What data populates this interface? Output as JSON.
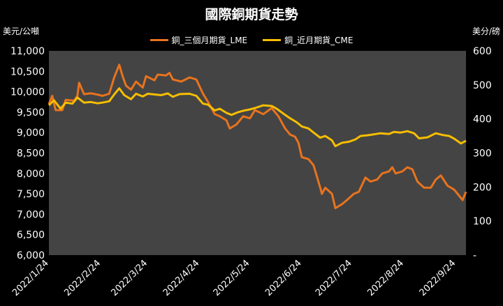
{
  "chart_data": {
    "type": "line",
    "title": "國際銅期貨走勢",
    "ylabel_left": "美元/公噸",
    "ylabel_right": "美分/磅",
    "ylim_left": [
      6000,
      11000
    ],
    "ylim_right": [
      0,
      600
    ],
    "left_ticks": [
      "6,000",
      "6,500",
      "7,000",
      "7,500",
      "8,000",
      "8,500",
      "9,000",
      "9,500",
      "10,000",
      "10,500",
      "11,000"
    ],
    "right_ticks": [
      "-",
      "100",
      "200",
      "300",
      "400",
      "500",
      "600"
    ],
    "x_tick_labels": [
      "2022/1/24",
      "2022/2/24",
      "2022/3/24",
      "2022/4/24",
      "2022/5/24",
      "2022/6/24",
      "2022/7/24",
      "2022/8/24",
      "2022/9/24"
    ],
    "x_range": [
      "2022-01-24",
      "2022-09-30"
    ],
    "grid": false,
    "legend_position": "top",
    "series": [
      {
        "name": "銅_三個月期貨_LME",
        "axis": "left",
        "color": "#E8731E",
        "points": [
          [
            "2022-01-24",
            9700
          ],
          [
            "2022-01-26",
            9900
          ],
          [
            "2022-01-28",
            9550
          ],
          [
            "2022-02-01",
            9550
          ],
          [
            "2022-02-03",
            9800
          ],
          [
            "2022-02-08",
            9780
          ],
          [
            "2022-02-10",
            9900
          ],
          [
            "2022-02-11",
            10220
          ],
          [
            "2022-02-14",
            9940
          ],
          [
            "2022-02-18",
            9960
          ],
          [
            "2022-02-22",
            9930
          ],
          [
            "2022-02-25",
            9900
          ],
          [
            "2022-03-01",
            9950
          ],
          [
            "2022-03-04",
            10350
          ],
          [
            "2022-03-07",
            10660
          ],
          [
            "2022-03-09",
            10380
          ],
          [
            "2022-03-11",
            10150
          ],
          [
            "2022-03-14",
            10050
          ],
          [
            "2022-03-17",
            10250
          ],
          [
            "2022-03-21",
            10100
          ],
          [
            "2022-03-23",
            10380
          ],
          [
            "2022-03-28",
            10280
          ],
          [
            "2022-03-30",
            10420
          ],
          [
            "2022-04-04",
            10400
          ],
          [
            "2022-04-06",
            10460
          ],
          [
            "2022-04-08",
            10300
          ],
          [
            "2022-04-13",
            10250
          ],
          [
            "2022-04-18",
            10350
          ],
          [
            "2022-04-22",
            10300
          ],
          [
            "2022-04-26",
            9950
          ],
          [
            "2022-04-29",
            9750
          ],
          [
            "2022-05-03",
            9450
          ],
          [
            "2022-05-06",
            9400
          ],
          [
            "2022-05-10",
            9300
          ],
          [
            "2022-05-12",
            9100
          ],
          [
            "2022-05-16",
            9200
          ],
          [
            "2022-05-20",
            9400
          ],
          [
            "2022-05-24",
            9350
          ],
          [
            "2022-05-27",
            9550
          ],
          [
            "2022-06-01",
            9450
          ],
          [
            "2022-06-06",
            9600
          ],
          [
            "2022-06-10",
            9400
          ],
          [
            "2022-06-14",
            9100
          ],
          [
            "2022-06-17",
            8950
          ],
          [
            "2022-06-20",
            8900
          ],
          [
            "2022-06-22",
            8750
          ],
          [
            "2022-06-24",
            8400
          ],
          [
            "2022-06-28",
            8350
          ],
          [
            "2022-07-01",
            8200
          ],
          [
            "2022-07-05",
            7650
          ],
          [
            "2022-07-06",
            7500
          ],
          [
            "2022-07-08",
            7650
          ],
          [
            "2022-07-12",
            7500
          ],
          [
            "2022-07-14",
            7150
          ],
          [
            "2022-07-18",
            7250
          ],
          [
            "2022-07-21",
            7350
          ],
          [
            "2022-07-25",
            7500
          ],
          [
            "2022-07-28",
            7550
          ],
          [
            "2022-08-01",
            7900
          ],
          [
            "2022-08-04",
            7800
          ],
          [
            "2022-08-08",
            7850
          ],
          [
            "2022-08-11",
            8000
          ],
          [
            "2022-08-15",
            8050
          ],
          [
            "2022-08-17",
            8150
          ],
          [
            "2022-08-19",
            8000
          ],
          [
            "2022-08-23",
            8050
          ],
          [
            "2022-08-26",
            8150
          ],
          [
            "2022-08-29",
            8100
          ],
          [
            "2022-09-01",
            7800
          ],
          [
            "2022-09-05",
            7650
          ],
          [
            "2022-09-09",
            7650
          ],
          [
            "2022-09-12",
            7850
          ],
          [
            "2022-09-15",
            7950
          ],
          [
            "2022-09-19",
            7700
          ],
          [
            "2022-09-23",
            7600
          ],
          [
            "2022-09-26",
            7450
          ],
          [
            "2022-09-28",
            7350
          ],
          [
            "2022-09-30",
            7550
          ]
        ]
      },
      {
        "name": "銅_近月期貨_CME",
        "axis": "right",
        "color": "#F6BE00",
        "points": [
          [
            "2022-01-24",
            440
          ],
          [
            "2022-01-27",
            455
          ],
          [
            "2022-01-31",
            430
          ],
          [
            "2022-02-03",
            448
          ],
          [
            "2022-02-07",
            445
          ],
          [
            "2022-02-10",
            463
          ],
          [
            "2022-02-14",
            448
          ],
          [
            "2022-02-18",
            450
          ],
          [
            "2022-02-22",
            446
          ],
          [
            "2022-02-25",
            448
          ],
          [
            "2022-03-01",
            452
          ],
          [
            "2022-03-04",
            472
          ],
          [
            "2022-03-07",
            490
          ],
          [
            "2022-03-10",
            470
          ],
          [
            "2022-03-14",
            458
          ],
          [
            "2022-03-17",
            474
          ],
          [
            "2022-03-21",
            466
          ],
          [
            "2022-03-24",
            474
          ],
          [
            "2022-03-28",
            472
          ],
          [
            "2022-04-01",
            470
          ],
          [
            "2022-04-05",
            475
          ],
          [
            "2022-04-08",
            465
          ],
          [
            "2022-04-12",
            473
          ],
          [
            "2022-04-18",
            474
          ],
          [
            "2022-04-22",
            468
          ],
          [
            "2022-04-26",
            445
          ],
          [
            "2022-04-29",
            442
          ],
          [
            "2022-05-03",
            425
          ],
          [
            "2022-05-06",
            430
          ],
          [
            "2022-05-10",
            418
          ],
          [
            "2022-05-13",
            412
          ],
          [
            "2022-05-17",
            420
          ],
          [
            "2022-05-20",
            424
          ],
          [
            "2022-05-24",
            428
          ],
          [
            "2022-05-27",
            432
          ],
          [
            "2022-06-01",
            440
          ],
          [
            "2022-06-06",
            438
          ],
          [
            "2022-06-09",
            430
          ],
          [
            "2022-06-14",
            412
          ],
          [
            "2022-06-17",
            402
          ],
          [
            "2022-06-21",
            390
          ],
          [
            "2022-06-24",
            378
          ],
          [
            "2022-06-28",
            372
          ],
          [
            "2022-07-01",
            360
          ],
          [
            "2022-07-05",
            345
          ],
          [
            "2022-07-08",
            350
          ],
          [
            "2022-07-12",
            337
          ],
          [
            "2022-07-14",
            320
          ],
          [
            "2022-07-18",
            330
          ],
          [
            "2022-07-22",
            333
          ],
          [
            "2022-07-26",
            340
          ],
          [
            "2022-07-29",
            350
          ],
          [
            "2022-08-02",
            352
          ],
          [
            "2022-08-05",
            354
          ],
          [
            "2022-08-10",
            358
          ],
          [
            "2022-08-15",
            356
          ],
          [
            "2022-08-18",
            362
          ],
          [
            "2022-08-22",
            360
          ],
          [
            "2022-08-26",
            364
          ],
          [
            "2022-08-30",
            358
          ],
          [
            "2022-09-02",
            343
          ],
          [
            "2022-09-07",
            346
          ],
          [
            "2022-09-12",
            358
          ],
          [
            "2022-09-16",
            353
          ],
          [
            "2022-09-20",
            350
          ],
          [
            "2022-09-23",
            342
          ],
          [
            "2022-09-27",
            328
          ],
          [
            "2022-09-30",
            336
          ]
        ]
      }
    ]
  }
}
